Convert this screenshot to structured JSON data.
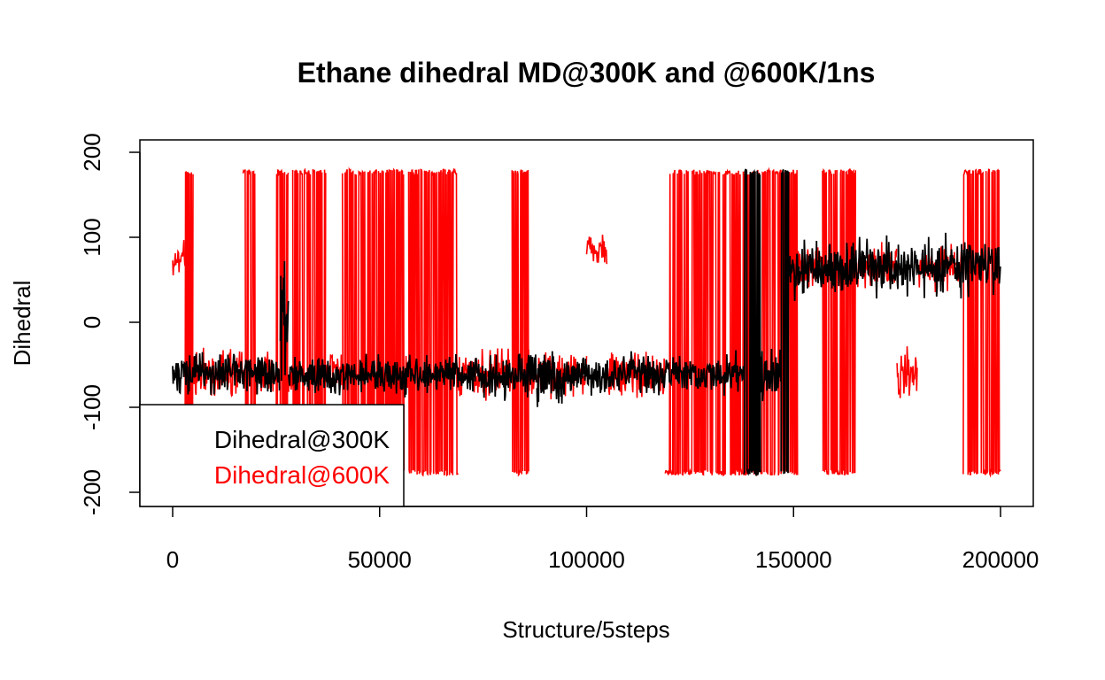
{
  "chart_data": {
    "type": "line",
    "title": "Ethane dihedral MD@300K and @600K/1ns",
    "xlabel": "Structure/5steps",
    "ylabel": "Dihedral",
    "xlim": [
      0,
      200000
    ],
    "ylim": [
      -200,
      200
    ],
    "x_ticks": [
      0,
      50000,
      100000,
      150000,
      200000
    ],
    "x_tick_labels": [
      "0",
      "50000",
      "100000",
      "150000",
      "200000"
    ],
    "y_ticks": [
      -200,
      -100,
      0,
      100,
      200
    ],
    "y_tick_labels": [
      "-200",
      "-100",
      "0",
      "100",
      "200"
    ],
    "grid": false,
    "legend_position": "bottom-left",
    "colors": {
      "Dihedral@600K": "#ff0000",
      "Dihedral@300K": "#000000"
    },
    "series": [
      {
        "name": "Dihedral@600K",
        "color": "#ff0000",
        "note_segments": "approximate regime envelopes [x_start, x_end, y_min, y_max]",
        "segments": [
          [
            0,
            3000,
            40,
            110
          ],
          [
            3000,
            5000,
            -180,
            180
          ],
          [
            5000,
            17000,
            -100,
            -20
          ],
          [
            17000,
            20000,
            -180,
            180
          ],
          [
            20000,
            25000,
            -100,
            -20
          ],
          [
            25000,
            28000,
            -180,
            180
          ],
          [
            28000,
            29000,
            -100,
            -20
          ],
          [
            29000,
            37000,
            -180,
            180
          ],
          [
            37000,
            41000,
            -100,
            -20
          ],
          [
            41000,
            56000,
            -180,
            180
          ],
          [
            56000,
            57000,
            -100,
            -20
          ],
          [
            57000,
            69000,
            -180,
            180
          ],
          [
            69000,
            82000,
            -100,
            -20
          ],
          [
            82000,
            86000,
            -180,
            180
          ],
          [
            86000,
            100000,
            -100,
            -20
          ],
          [
            100000,
            105000,
            60,
            110
          ],
          [
            105000,
            119000,
            -100,
            -20
          ],
          [
            119000,
            138000,
            -180,
            180
          ],
          [
            138000,
            148000,
            -180,
            180
          ],
          [
            148000,
            151000,
            -180,
            180
          ],
          [
            151000,
            157000,
            30,
            100
          ],
          [
            157000,
            165000,
            -180,
            180
          ],
          [
            165000,
            175000,
            30,
            100
          ],
          [
            175000,
            180000,
            -100,
            -20
          ],
          [
            180000,
            191000,
            30,
            100
          ],
          [
            191000,
            200000,
            -180,
            180
          ]
        ]
      },
      {
        "name": "Dihedral@300K",
        "color": "#000000",
        "note_segments": "approximate regime envelopes [x_start, x_end, y_min, y_max]",
        "segments": [
          [
            0,
            26000,
            -95,
            -25
          ],
          [
            26000,
            28000,
            -100,
            120
          ],
          [
            28000,
            88000,
            -95,
            -30
          ],
          [
            88000,
            95000,
            -110,
            -20
          ],
          [
            95000,
            138000,
            -95,
            -30
          ],
          [
            138000,
            142000,
            -180,
            180
          ],
          [
            142000,
            147000,
            -120,
            0
          ],
          [
            147000,
            149000,
            -180,
            180
          ],
          [
            149000,
            200000,
            20,
            110
          ]
        ]
      }
    ],
    "legend": [
      {
        "label": "Dihedral@300K",
        "color": "#000000"
      },
      {
        "label": "Dihedral@600K",
        "color": "#ff0000"
      }
    ]
  }
}
